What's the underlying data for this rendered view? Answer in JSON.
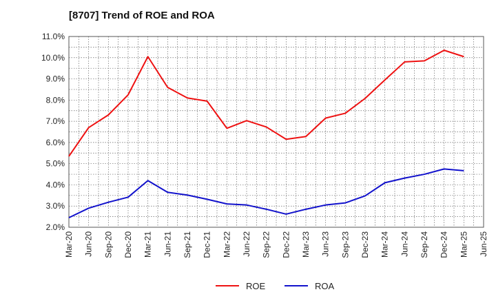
{
  "title": "[8707]  Trend of ROE and ROA",
  "chart_data": {
    "type": "line",
    "title": "[8707]  Trend of ROE and ROA",
    "xlabel": "",
    "ylabel": "",
    "x": [
      "Mar-20",
      "Jun-20",
      "Sep-20",
      "Dec-20",
      "Mar-21",
      "Jun-21",
      "Sep-21",
      "Dec-21",
      "Mar-22",
      "Jun-22",
      "Sep-22",
      "Dec-22",
      "Mar-23",
      "Jun-23",
      "Sep-23",
      "Dec-23",
      "Mar-24",
      "Jun-24",
      "Sep-24",
      "Dec-24",
      "Mar-25"
    ],
    "x_ticks": [
      "Mar-20",
      "Jun-20",
      "Sep-20",
      "Dec-20",
      "Mar-21",
      "Jun-21",
      "Sep-21",
      "Dec-21",
      "Mar-22",
      "Jun-22",
      "Sep-22",
      "Dec-22",
      "Mar-23",
      "Jun-23",
      "Sep-23",
      "Dec-23",
      "Mar-24",
      "Jun-24",
      "Sep-24",
      "Dec-24",
      "Mar-25",
      "Jun-25"
    ],
    "y_ticks": [
      "2.0%",
      "3.0%",
      "4.0%",
      "5.0%",
      "6.0%",
      "7.0%",
      "8.0%",
      "9.0%",
      "10.0%",
      "11.0%"
    ],
    "ylim": [
      2.0,
      11.0
    ],
    "grid": true,
    "legend_position": "bottom-center",
    "series": [
      {
        "name": "ROE",
        "color": "#ee1111",
        "values": [
          5.35,
          6.7,
          7.3,
          8.25,
          10.05,
          8.6,
          8.1,
          7.95,
          6.67,
          7.03,
          6.73,
          6.15,
          6.28,
          7.15,
          7.38,
          8.08,
          8.95,
          9.8,
          9.85,
          10.35,
          10.05
        ]
      },
      {
        "name": "ROA",
        "color": "#1111cc",
        "values": [
          2.45,
          2.9,
          3.18,
          3.42,
          4.2,
          3.65,
          3.52,
          3.32,
          3.1,
          3.05,
          2.85,
          2.62,
          2.85,
          3.05,
          3.15,
          3.48,
          4.1,
          4.32,
          4.5,
          4.75,
          4.67
        ]
      }
    ]
  }
}
